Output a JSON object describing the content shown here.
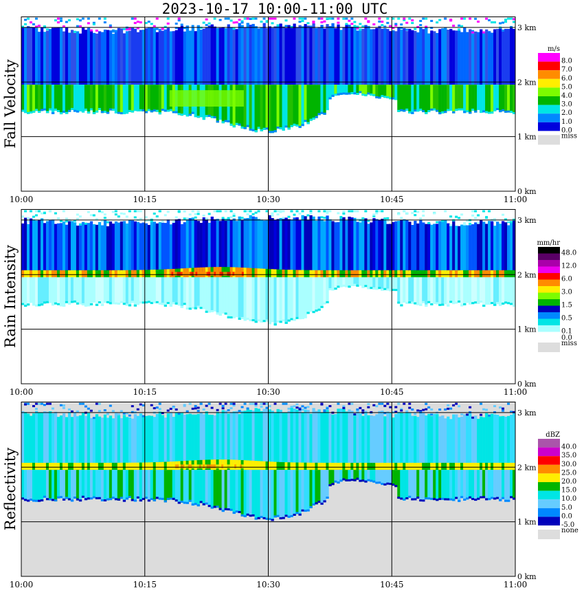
{
  "title": "2023-10-17   10:00-11:00 UTC",
  "time_ticks": [
    "10:00",
    "10:15",
    "10:30",
    "10:45",
    "11:00"
  ],
  "height_ticks": [
    "0 km",
    "1 km",
    "2 km",
    "3 km"
  ],
  "panels": [
    {
      "id": "fall-velocity",
      "label": "Fall Velocity",
      "unit": "m/s",
      "background": "#ffffff",
      "legend": [
        {
          "label": "8.0",
          "color": "#ff00ff"
        },
        {
          "label": "7.0",
          "color": "#ff0000"
        },
        {
          "label": "6.0",
          "color": "#ff8c00"
        },
        {
          "label": "5.0",
          "color": "#ffee00"
        },
        {
          "label": "4.0",
          "color": "#7cfc00"
        },
        {
          "label": "3.0",
          "color": "#00b400"
        },
        {
          "label": "2.0",
          "color": "#00e5e5"
        },
        {
          "label": "1.0",
          "color": "#0088ff"
        },
        {
          "label": "0.0",
          "color": "#0000dd"
        },
        {
          "label": "miss",
          "color": "#dddddd"
        }
      ]
    },
    {
      "id": "rain-intensity",
      "label": "Rain Intensity",
      "unit": "mm/hr",
      "background": "#ffffff",
      "legend": [
        {
          "label": "48.0",
          "color": "#000000"
        },
        {
          "label": "",
          "color": "#5a0066"
        },
        {
          "label": "12.0",
          "color": "#aa00aa"
        },
        {
          "label": "",
          "color": "#ee00ee"
        },
        {
          "label": "6.0",
          "color": "#ff0000"
        },
        {
          "label": "",
          "color": "#ff8c00"
        },
        {
          "label": "3.0",
          "color": "#ffee00"
        },
        {
          "label": "",
          "color": "#7cfc00"
        },
        {
          "label": "1.5",
          "color": "#00b400"
        },
        {
          "label": "",
          "color": "#0000bb"
        },
        {
          "label": "0.5",
          "color": "#0088ff"
        },
        {
          "label": "",
          "color": "#00e5e5"
        },
        {
          "label": "0.1",
          "color": "#aaffff"
        },
        {
          "label": "0.0",
          "color": "#ffffff"
        },
        {
          "label": "miss",
          "color": "#dddddd"
        }
      ]
    },
    {
      "id": "reflectivity",
      "label": "Reflectivity",
      "unit": "dBZ",
      "background": "#dcdcdc",
      "legend": [
        {
          "label": "40.0",
          "color": "#aa55aa"
        },
        {
          "label": "35.0",
          "color": "#cc00cc"
        },
        {
          "label": "30.0",
          "color": "#ff0000"
        },
        {
          "label": "25.0",
          "color": "#ff8c00"
        },
        {
          "label": "20.0",
          "color": "#ffee00"
        },
        {
          "label": "15.0",
          "color": "#00b400"
        },
        {
          "label": "10.0",
          "color": "#00e5e5"
        },
        {
          "label": "5.0",
          "color": "#66ccff"
        },
        {
          "label": "0.0",
          "color": "#0088ff"
        },
        {
          "label": "-5.0",
          "color": "#0000bb"
        },
        {
          "label": "none",
          "color": "#dddddd"
        }
      ]
    }
  ],
  "chart_data": [
    {
      "type": "heatmap",
      "title": "Fall Velocity",
      "x_label": "",
      "y_label": "Fall Velocity",
      "z_unit": "m/s",
      "x_range": [
        "10:00",
        "11:00"
      ],
      "y_range_km": [
        0,
        3.2
      ],
      "bands_km": [
        {
          "bottom_km": 1.95,
          "top_km": 3.1,
          "value": 1.0
        },
        {
          "bottom_km": 1.25,
          "top_km": 1.95,
          "value": 3.5
        }
      ]
    },
    {
      "type": "heatmap",
      "title": "Rain Intensity",
      "x_label": "",
      "y_label": "Rain Intensity",
      "z_unit": "mm/hr",
      "x_range": [
        "10:00",
        "11:00"
      ],
      "y_range_km": [
        0,
        3.2
      ],
      "bands_km": [
        {
          "bottom_km": 2.05,
          "top_km": 3.1,
          "value": 0.5
        },
        {
          "bottom_km": 1.95,
          "top_km": 2.05,
          "value": 3.0
        },
        {
          "bottom_km": 1.25,
          "top_km": 1.95,
          "value": 0.1
        }
      ]
    },
    {
      "type": "heatmap",
      "title": "Reflectivity",
      "x_label": "",
      "y_label": "Reflectivity",
      "z_unit": "dBZ",
      "x_range": [
        "10:00",
        "11:00"
      ],
      "y_range_km": [
        0,
        3.2
      ],
      "bands_km": [
        {
          "bottom_km": 2.05,
          "top_km": 3.1,
          "value": 10.0
        },
        {
          "bottom_km": 1.95,
          "top_km": 2.05,
          "value": 20.0
        },
        {
          "bottom_km": 1.2,
          "top_km": 1.95,
          "value": 10.0
        }
      ]
    }
  ]
}
